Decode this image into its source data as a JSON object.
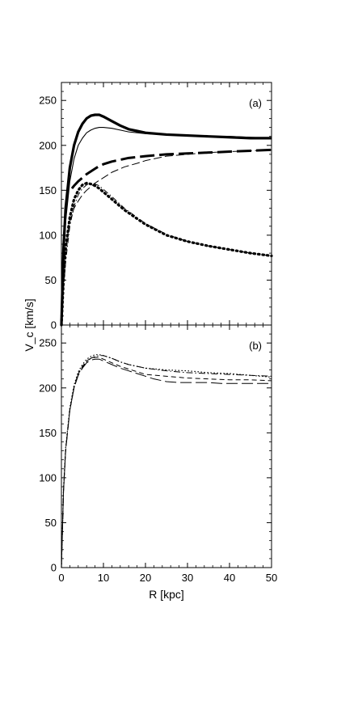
{
  "chart_data": [
    {
      "type": "line",
      "panel_label": "(a)",
      "xlabel": "",
      "ylabel": "V_c [km/s]",
      "xlim": [
        0,
        50
      ],
      "ylim": [
        0,
        270
      ],
      "xticks": [
        "0",
        "10",
        "20",
        "30",
        "40",
        "50"
      ],
      "yticks": [
        "0",
        "50",
        "100",
        "150",
        "200",
        "250"
      ],
      "series": [
        {
          "style": "thick-solid",
          "x": [
            0,
            0.5,
            1,
            2,
            3,
            4,
            5,
            6,
            7,
            8,
            9,
            10,
            12,
            14,
            16,
            18,
            20,
            25,
            30,
            35,
            40,
            45,
            50
          ],
          "y": [
            0,
            85,
            130,
            175,
            200,
            215,
            224,
            230,
            233,
            234,
            234,
            232,
            227,
            222,
            218,
            216,
            214,
            212,
            211,
            210,
            209,
            208,
            208
          ]
        },
        {
          "style": "thin-solid",
          "x": [
            0,
            0.5,
            1,
            2,
            3,
            4,
            5,
            6,
            7,
            8,
            9,
            10,
            12,
            14,
            16,
            18,
            20,
            25,
            30,
            35,
            40,
            45,
            50
          ],
          "y": [
            0,
            70,
            115,
            160,
            185,
            200,
            208,
            214,
            217,
            219,
            220,
            220,
            219,
            217,
            215,
            214,
            213,
            212,
            211,
            210,
            210,
            209,
            208
          ]
        },
        {
          "style": "thick-dashed",
          "x": [
            2.5,
            3,
            4,
            5,
            6,
            7,
            8,
            9,
            10,
            12,
            14,
            16,
            18,
            20,
            25,
            30,
            35,
            40,
            45,
            50
          ],
          "y": [
            152,
            155,
            160,
            164,
            168,
            171,
            174,
            177,
            179,
            182,
            184,
            186,
            187,
            188,
            190,
            191,
            192,
            193,
            194,
            195
          ]
        },
        {
          "style": "thin-dashed",
          "x": [
            0,
            0.5,
            1,
            2,
            3,
            4,
            5,
            6,
            8,
            10,
            12,
            15,
            18,
            20,
            25,
            30,
            35,
            40,
            45,
            50
          ],
          "y": [
            0,
            55,
            85,
            115,
            130,
            138,
            145,
            150,
            158,
            164,
            170,
            176,
            180,
            183,
            188,
            190,
            192,
            193,
            194,
            195
          ]
        },
        {
          "style": "thick-dotted",
          "x": [
            0,
            0.5,
            1,
            2,
            3,
            4,
            5,
            6,
            7,
            8,
            9,
            10,
            12,
            15,
            20,
            25,
            30,
            35,
            40,
            45,
            50
          ],
          "y": [
            0,
            50,
            85,
            120,
            140,
            150,
            156,
            158,
            157,
            155,
            152,
            148,
            140,
            128,
            112,
            100,
            93,
            88,
            84,
            80,
            77
          ]
        },
        {
          "style": "thin-dash-dot",
          "x": [
            0,
            0.5,
            1,
            2,
            3,
            4,
            5,
            6,
            7,
            8,
            9,
            10,
            12,
            15,
            20,
            25,
            30,
            35,
            40,
            45,
            50
          ],
          "y": [
            0,
            40,
            70,
            110,
            132,
            145,
            152,
            156,
            158,
            157,
            155,
            151,
            143,
            130,
            113,
            101,
            93,
            88,
            84,
            80,
            77
          ]
        }
      ]
    },
    {
      "type": "line",
      "panel_label": "(b)",
      "xlabel": "R [kpc]",
      "ylabel": "V_c [km/s]",
      "xlim": [
        0,
        50
      ],
      "ylim": [
        0,
        270
      ],
      "xticks": [
        "0",
        "10",
        "20",
        "30",
        "40",
        "50"
      ],
      "yticks": [
        "0",
        "50",
        "100",
        "150",
        "200",
        "250"
      ],
      "series": [
        {
          "style": "long-dash",
          "x": [
            0,
            0.5,
            1,
            2,
            3,
            4,
            5,
            6,
            7,
            8,
            9,
            10,
            12,
            14,
            16,
            18,
            20,
            22,
            25,
            28,
            30,
            32,
            35,
            38,
            40,
            45,
            50
          ],
          "y": [
            0,
            85,
            130,
            175,
            200,
            214,
            222,
            228,
            231,
            232,
            232,
            230,
            226,
            222,
            219,
            216,
            213,
            210,
            207,
            206,
            206,
            206,
            206,
            205,
            205,
            205,
            205
          ]
        },
        {
          "style": "dash-dot",
          "x": [
            0,
            0.5,
            1,
            2,
            3,
            4,
            5,
            6,
            7,
            8,
            9,
            10,
            12,
            14,
            16,
            18,
            20,
            25,
            30,
            35,
            40,
            45,
            50
          ],
          "y": [
            0,
            85,
            130,
            175,
            200,
            215,
            223,
            229,
            233,
            235,
            236,
            236,
            233,
            229,
            226,
            224,
            222,
            219,
            217,
            216,
            215,
            214,
            213
          ]
        },
        {
          "style": "dotted",
          "x": [
            0,
            0.5,
            1,
            2,
            3,
            4,
            5,
            6,
            7,
            8,
            9,
            10,
            12,
            14,
            16,
            18,
            20,
            25,
            30,
            35,
            40,
            45,
            50
          ],
          "y": [
            0,
            88,
            133,
            178,
            203,
            218,
            226,
            232,
            235,
            237,
            237,
            236,
            233,
            229,
            226,
            224,
            222,
            220,
            219,
            217,
            216,
            214,
            212
          ]
        },
        {
          "style": "dashed",
          "x": [
            0,
            0.5,
            1,
            2,
            3,
            4,
            5,
            6,
            7,
            8,
            9,
            10,
            12,
            14,
            16,
            18,
            20,
            25,
            30,
            35,
            40,
            45,
            50
          ],
          "y": [
            0,
            86,
            131,
            176,
            201,
            216,
            224,
            230,
            233,
            234,
            234,
            232,
            228,
            224,
            221,
            218,
            215,
            213,
            211,
            210,
            209,
            209,
            208
          ]
        }
      ]
    }
  ]
}
